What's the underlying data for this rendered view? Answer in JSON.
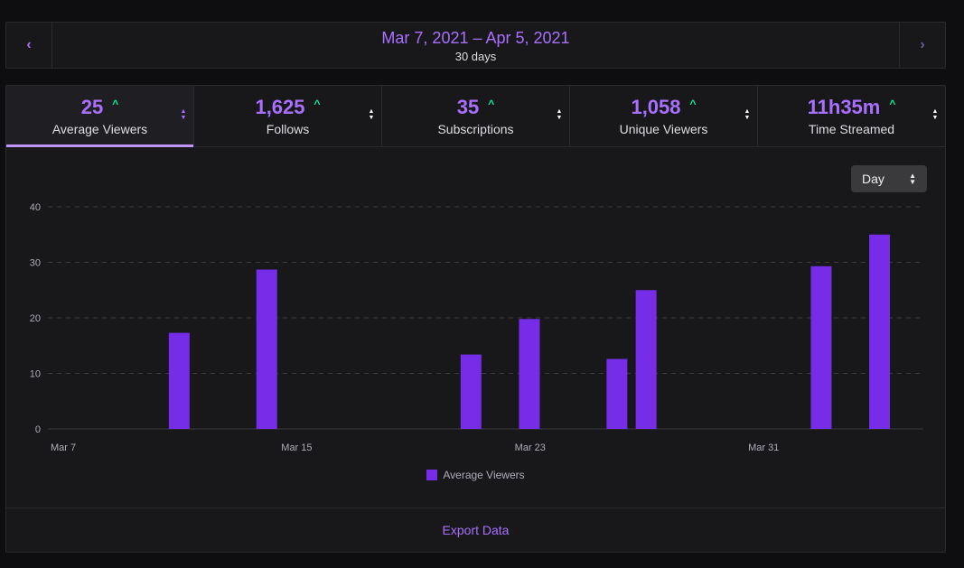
{
  "date_bar": {
    "prev_icon": "chevron-left-icon",
    "next_icon": "chevron-right-icon",
    "range": "Mar 7, 2021 – Apr 5, 2021",
    "duration": "30 days"
  },
  "stats": [
    {
      "value": "25",
      "label": "Average Viewers",
      "trend": "up",
      "active": true
    },
    {
      "value": "1,625",
      "label": "Follows",
      "trend": "up",
      "active": false
    },
    {
      "value": "35",
      "label": "Subscriptions",
      "trend": "up",
      "active": false
    },
    {
      "value": "1,058",
      "label": "Unique Viewers",
      "trend": "up",
      "active": false
    },
    {
      "value": "11h35m",
      "label": "Time Streamed",
      "trend": "up",
      "active": false
    }
  ],
  "interval_select": {
    "value": "Day"
  },
  "colors": {
    "accent": "#a970ff",
    "bar": "#772ce8",
    "trend_up": "#00f593"
  },
  "chart_data": {
    "type": "bar",
    "categories": [
      "Mar 7",
      "Mar 8",
      "Mar 9",
      "Mar 10",
      "Mar 11",
      "Mar 12",
      "Mar 13",
      "Mar 14",
      "Mar 15",
      "Mar 16",
      "Mar 17",
      "Mar 18",
      "Mar 19",
      "Mar 20",
      "Mar 21",
      "Mar 22",
      "Mar 23",
      "Mar 24",
      "Mar 25",
      "Mar 26",
      "Mar 27",
      "Mar 28",
      "Mar 29",
      "Mar 30",
      "Mar 31",
      "Apr 1",
      "Apr 2",
      "Apr 3",
      "Apr 4",
      "Apr 5"
    ],
    "x_tick_labels": [
      "Mar 7",
      "Mar 15",
      "Mar 23",
      "Mar 31"
    ],
    "x_tick_index": [
      0,
      8,
      16,
      24
    ],
    "series": [
      {
        "name": "Average Viewers",
        "values": [
          0,
          0,
          0,
          0,
          17.3,
          0,
          0,
          28.7,
          0,
          0,
          0,
          0,
          0,
          0,
          13.4,
          0,
          19.8,
          0,
          0,
          12.6,
          25,
          0,
          0,
          0,
          0,
          0,
          29.3,
          0,
          35,
          0
        ]
      }
    ],
    "ylim": [
      0,
      40
    ],
    "y_ticks": [
      0,
      10,
      20,
      30,
      40
    ],
    "grid": true,
    "legend": "bottom-center"
  },
  "export": {
    "label": "Export Data"
  }
}
